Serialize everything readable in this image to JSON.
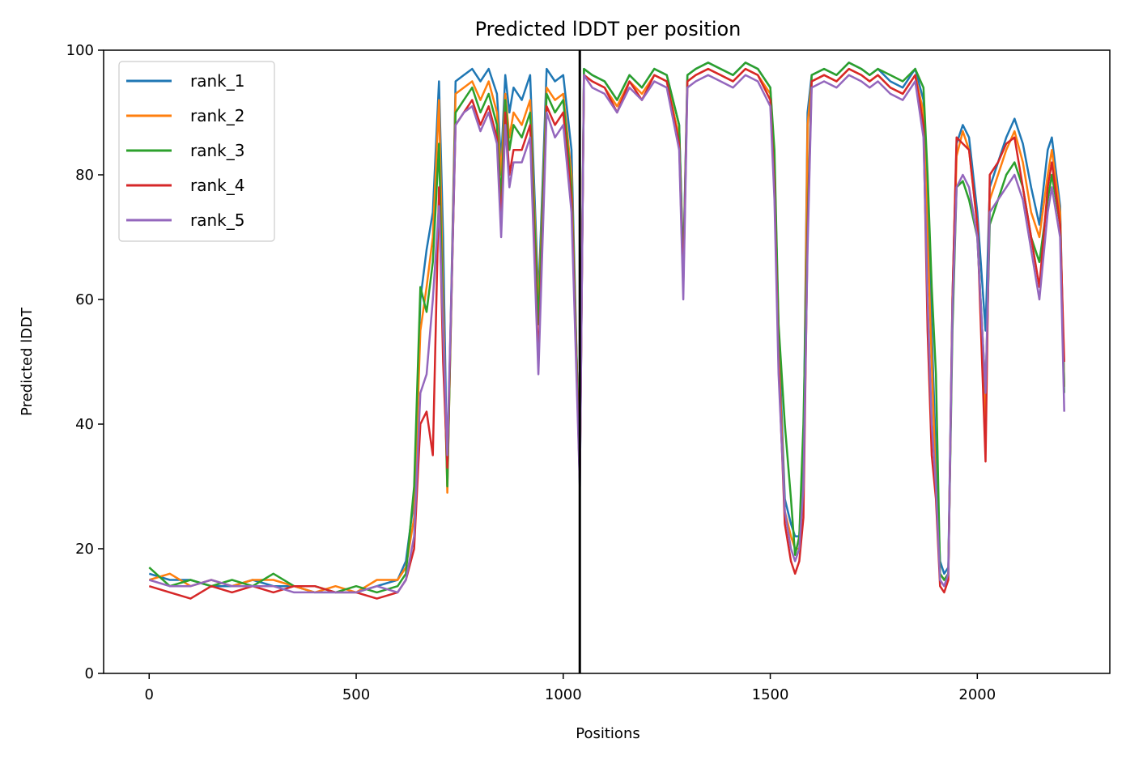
{
  "chart_data": {
    "type": "line",
    "title": "Predicted lDDT per position",
    "xlabel": "Positions",
    "ylabel": "Predicted lDDT",
    "xlim": [
      -110,
      2320
    ],
    "ylim": [
      0,
      100
    ],
    "xticks": [
      0,
      500,
      1000,
      1500,
      2000
    ],
    "yticks": [
      0,
      20,
      40,
      60,
      80,
      100
    ],
    "grid": false,
    "legend_position": "top-left",
    "chain_break": 1040,
    "series": [
      {
        "name": "rank_1",
        "color": "#1f77b4",
        "x": [
          0,
          50,
          100,
          150,
          200,
          250,
          300,
          350,
          400,
          450,
          500,
          550,
          600,
          620,
          640,
          655,
          670,
          685,
          700,
          710,
          720,
          740,
          760,
          780,
          800,
          820,
          840,
          850,
          860,
          870,
          880,
          900,
          920,
          940,
          960,
          980,
          1000,
          1020,
          1040,
          1050,
          1070,
          1100,
          1130,
          1160,
          1190,
          1220,
          1250,
          1280,
          1290,
          1300,
          1320,
          1350,
          1380,
          1410,
          1440,
          1470,
          1500,
          1510,
          1520,
          1535,
          1550,
          1560,
          1570,
          1580,
          1590,
          1600,
          1630,
          1660,
          1690,
          1720,
          1740,
          1760,
          1790,
          1820,
          1850,
          1870,
          1880,
          1890,
          1900,
          1910,
          1920,
          1930,
          1940,
          1950,
          1965,
          1980,
          2000,
          2020,
          2030,
          2050,
          2070,
          2090,
          2110,
          2130,
          2150,
          2170,
          2180,
          2200,
          2210
        ],
        "y": [
          16,
          15,
          15,
          14,
          14,
          15,
          14,
          14,
          13,
          13,
          13,
          14,
          15,
          18,
          28,
          60,
          68,
          74,
          95,
          70,
          30,
          95,
          96,
          97,
          95,
          97,
          93,
          82,
          96,
          90,
          94,
          92,
          96,
          60,
          97,
          95,
          96,
          84,
          30,
          97,
          96,
          95,
          92,
          96,
          94,
          97,
          96,
          88,
          65,
          96,
          97,
          98,
          97,
          96,
          98,
          97,
          94,
          82,
          55,
          28,
          24,
          22,
          22,
          34,
          90,
          96,
          97,
          96,
          98,
          97,
          96,
          97,
          95,
          94,
          97,
          92,
          75,
          55,
          35,
          18,
          16,
          17,
          60,
          85,
          88,
          86,
          74,
          55,
          78,
          82,
          86,
          89,
          85,
          78,
          72,
          84,
          86,
          75,
          46
        ]
      },
      {
        "name": "rank_2",
        "color": "#ff7f0e",
        "x": [
          0,
          50,
          100,
          150,
          200,
          250,
          300,
          350,
          400,
          450,
          500,
          550,
          600,
          620,
          640,
          655,
          670,
          685,
          700,
          710,
          720,
          740,
          760,
          780,
          800,
          820,
          840,
          850,
          860,
          870,
          880,
          900,
          920,
          940,
          960,
          980,
          1000,
          1020,
          1040,
          1050,
          1070,
          1100,
          1130,
          1160,
          1190,
          1220,
          1250,
          1280,
          1290,
          1300,
          1320,
          1350,
          1380,
          1410,
          1440,
          1470,
          1500,
          1510,
          1520,
          1535,
          1550,
          1560,
          1570,
          1580,
          1590,
          1600,
          1630,
          1660,
          1690,
          1720,
          1740,
          1760,
          1790,
          1820,
          1850,
          1870,
          1880,
          1890,
          1900,
          1910,
          1920,
          1930,
          1940,
          1950,
          1965,
          1980,
          2000,
          2020,
          2030,
          2050,
          2070,
          2090,
          2110,
          2130,
          2150,
          2170,
          2180,
          2200,
          2210
        ],
        "y": [
          15,
          16,
          14,
          15,
          14,
          15,
          15,
          14,
          13,
          14,
          13,
          15,
          15,
          17,
          25,
          55,
          62,
          70,
          92,
          60,
          29,
          93,
          94,
          95,
          92,
          95,
          90,
          80,
          93,
          86,
          90,
          88,
          92,
          58,
          94,
          92,
          93,
          80,
          32,
          96,
          95,
          94,
          91,
          95,
          93,
          96,
          95,
          86,
          63,
          95,
          96,
          97,
          96,
          95,
          97,
          96,
          93,
          80,
          52,
          26,
          22,
          20,
          20,
          30,
          88,
          95,
          96,
          95,
          97,
          96,
          95,
          96,
          94,
          93,
          96,
          90,
          70,
          50,
          30,
          16,
          15,
          16,
          58,
          83,
          87,
          84,
          72,
          40,
          76,
          80,
          84,
          87,
          82,
          74,
          70,
          80,
          84,
          74,
          46
        ]
      },
      {
        "name": "rank_3",
        "color": "#2ca02c",
        "x": [
          0,
          50,
          100,
          150,
          200,
          250,
          300,
          350,
          400,
          450,
          500,
          550,
          600,
          620,
          640,
          655,
          670,
          685,
          700,
          710,
          720,
          740,
          760,
          780,
          800,
          820,
          840,
          850,
          860,
          870,
          880,
          900,
          920,
          940,
          960,
          980,
          1000,
          1020,
          1040,
          1050,
          1070,
          1100,
          1130,
          1160,
          1190,
          1220,
          1250,
          1280,
          1290,
          1300,
          1320,
          1350,
          1380,
          1410,
          1440,
          1470,
          1500,
          1510,
          1520,
          1535,
          1550,
          1560,
          1570,
          1580,
          1590,
          1600,
          1630,
          1660,
          1690,
          1720,
          1740,
          1760,
          1790,
          1820,
          1850,
          1870,
          1880,
          1890,
          1900,
          1910,
          1920,
          1930,
          1940,
          1950,
          1965,
          1980,
          2000,
          2020,
          2030,
          2050,
          2070,
          2090,
          2110,
          2130,
          2150,
          2170,
          2180,
          2200,
          2210
        ],
        "y": [
          17,
          14,
          15,
          14,
          15,
          14,
          16,
          14,
          14,
          13,
          14,
          13,
          14,
          16,
          30,
          62,
          58,
          66,
          85,
          55,
          30,
          90,
          92,
          94,
          90,
          93,
          88,
          76,
          92,
          84,
          88,
          86,
          90,
          56,
          93,
          90,
          92,
          78,
          33,
          97,
          96,
          95,
          92,
          96,
          94,
          97,
          96,
          88,
          64,
          96,
          97,
          98,
          97,
          96,
          98,
          97,
          94,
          84,
          56,
          40,
          28,
          19,
          22,
          40,
          72,
          96,
          97,
          96,
          98,
          97,
          96,
          97,
          96,
          95,
          97,
          94,
          80,
          62,
          48,
          16,
          15,
          16,
          55,
          78,
          79,
          76,
          70,
          45,
          72,
          76,
          80,
          82,
          78,
          70,
          66,
          76,
          80,
          72,
          45
        ]
      },
      {
        "name": "rank_4",
        "color": "#d62728",
        "x": [
          0,
          50,
          100,
          150,
          200,
          250,
          300,
          350,
          400,
          450,
          500,
          550,
          600,
          620,
          640,
          655,
          670,
          685,
          700,
          710,
          720,
          740,
          760,
          780,
          800,
          820,
          840,
          850,
          860,
          870,
          880,
          900,
          920,
          940,
          960,
          980,
          1000,
          1020,
          1040,
          1050,
          1070,
          1100,
          1130,
          1160,
          1190,
          1220,
          1250,
          1280,
          1290,
          1300,
          1320,
          1350,
          1380,
          1410,
          1440,
          1470,
          1500,
          1510,
          1520,
          1535,
          1550,
          1560,
          1570,
          1580,
          1590,
          1600,
          1630,
          1660,
          1690,
          1720,
          1740,
          1760,
          1790,
          1820,
          1850,
          1870,
          1880,
          1890,
          1900,
          1910,
          1920,
          1930,
          1940,
          1950,
          1965,
          1980,
          2000,
          2020,
          2030,
          2050,
          2070,
          2090,
          2110,
          2130,
          2150,
          2170,
          2180,
          2200,
          2210
        ],
        "y": [
          14,
          13,
          12,
          14,
          13,
          14,
          13,
          14,
          14,
          13,
          13,
          12,
          13,
          15,
          20,
          40,
          42,
          35,
          78,
          50,
          33,
          88,
          90,
          92,
          88,
          91,
          86,
          72,
          90,
          80,
          84,
          84,
          88,
          50,
          91,
          88,
          90,
          76,
          31,
          96,
          95,
          94,
          90,
          95,
          92,
          96,
          95,
          85,
          62,
          95,
          96,
          97,
          96,
          95,
          97,
          96,
          92,
          78,
          50,
          24,
          18,
          16,
          18,
          25,
          70,
          95,
          96,
          95,
          97,
          96,
          95,
          96,
          94,
          93,
          96,
          88,
          55,
          35,
          28,
          14,
          13,
          15,
          60,
          86,
          85,
          84,
          72,
          34,
          80,
          82,
          85,
          86,
          78,
          70,
          62,
          78,
          82,
          72,
          50
        ]
      },
      {
        "name": "rank_5",
        "color": "#9467bd",
        "x": [
          0,
          50,
          100,
          150,
          200,
          250,
          300,
          350,
          400,
          450,
          500,
          550,
          600,
          620,
          640,
          655,
          670,
          685,
          700,
          710,
          720,
          740,
          760,
          780,
          800,
          820,
          840,
          850,
          860,
          870,
          880,
          900,
          920,
          940,
          960,
          980,
          1000,
          1020,
          1040,
          1050,
          1070,
          1100,
          1130,
          1160,
          1190,
          1220,
          1250,
          1280,
          1290,
          1300,
          1320,
          1350,
          1380,
          1410,
          1440,
          1470,
          1500,
          1510,
          1520,
          1535,
          1550,
          1560,
          1570,
          1580,
          1590,
          1600,
          1630,
          1660,
          1690,
          1720,
          1740,
          1760,
          1790,
          1820,
          1850,
          1870,
          1880,
          1890,
          1900,
          1910,
          1920,
          1930,
          1940,
          1950,
          1965,
          1980,
          2000,
          2020,
          2030,
          2050,
          2070,
          2090,
          2110,
          2130,
          2150,
          2170,
          2180,
          2200,
          2210
        ],
        "y": [
          15,
          14,
          14,
          15,
          14,
          14,
          14,
          13,
          13,
          13,
          13,
          14,
          13,
          15,
          22,
          45,
          48,
          60,
          75,
          55,
          35,
          88,
          90,
          91,
          87,
          90,
          85,
          70,
          88,
          78,
          82,
          82,
          86,
          48,
          90,
          86,
          88,
          74,
          30,
          96,
          94,
          93,
          90,
          94,
          92,
          95,
          94,
          84,
          60,
          94,
          95,
          96,
          95,
          94,
          96,
          95,
          91,
          76,
          48,
          26,
          20,
          18,
          20,
          30,
          68,
          94,
          95,
          94,
          96,
          95,
          94,
          95,
          93,
          92,
          95,
          86,
          60,
          40,
          30,
          15,
          14,
          16,
          58,
          78,
          80,
          78,
          70,
          45,
          74,
          76,
          78,
          80,
          76,
          68,
          60,
          74,
          78,
          70,
          42
        ]
      }
    ]
  }
}
